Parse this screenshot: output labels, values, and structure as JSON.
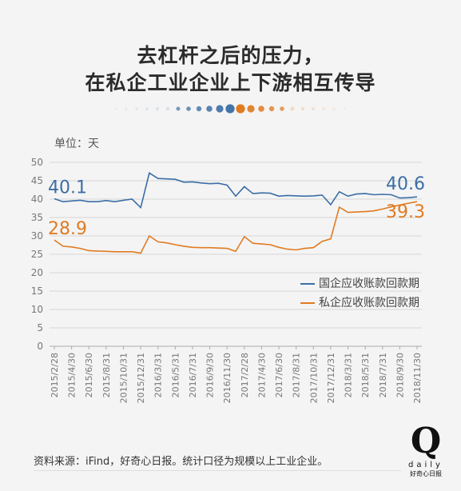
{
  "title_line1": "去杠杆之后的压力，",
  "title_line2": "在私企工业企业上下游相互传导",
  "unit_label": "单位：天",
  "source_text": "资料来源：iFind，好奇心日报。统计口径为规模以上工业企业。",
  "logo": {
    "mark": "Q",
    "word": "daily",
    "sub": "好奇心日报"
  },
  "colors": {
    "state": "#3b6ea5",
    "private": "#e07b22",
    "axis": "#999999",
    "grid": "#d6d6d6"
  },
  "chart_data": {
    "type": "line",
    "ylim": [
      0,
      50
    ],
    "yticks": [
      "0",
      "5",
      "10",
      "15",
      "20",
      "25",
      "30",
      "35",
      "40",
      "45",
      "50"
    ],
    "xtick_labels": [
      "2015/2/28",
      "2015/4/30",
      "2015/6/30",
      "2015/8/31",
      "2015/10/31",
      "2015/12/31",
      "2016/3/31",
      "2016/5/31",
      "2016/7/31",
      "2016/9/30",
      "2016/11/30",
      "2017/2/28",
      "2017/4/30",
      "2017/6/30",
      "2017/8/31",
      "2017/10/31",
      "2017/12/31",
      "2018/3/31",
      "2018/5/31",
      "2018/7/31",
      "2018/9/30",
      "2018/11/30"
    ],
    "legend": [
      "国企应收账款回款期",
      "私企应收账款回款期"
    ],
    "series": [
      {
        "name": "国企应收账款回款期",
        "start_label": "40.1",
        "end_label": "40.6",
        "values": [
          40.1,
          39.3,
          39.5,
          39.7,
          39.3,
          39.3,
          39.6,
          39.3,
          39.7,
          40.0,
          37.7,
          47.1,
          45.6,
          45.5,
          45.4,
          44.6,
          44.7,
          44.4,
          44.2,
          44.3,
          43.8,
          40.8,
          43.4,
          41.5,
          41.7,
          41.6,
          40.8,
          41.0,
          40.9,
          40.8,
          40.9,
          41.1,
          38.5,
          42.0,
          40.8,
          41.4,
          41.5,
          41.2,
          41.3,
          41.2,
          40.3,
          40.4,
          40.6
        ]
      },
      {
        "name": "私企应收账款回款期",
        "start_label": "28.9",
        "end_label": "39.3",
        "values": [
          28.9,
          27.2,
          27.0,
          26.6,
          26.0,
          25.9,
          25.8,
          25.7,
          25.7,
          25.7,
          25.3,
          30.0,
          28.4,
          28.1,
          27.6,
          27.2,
          26.9,
          26.8,
          26.8,
          26.7,
          26.6,
          25.8,
          29.8,
          28.0,
          27.8,
          27.6,
          26.9,
          26.4,
          26.2,
          26.6,
          26.8,
          28.5,
          29.2,
          37.8,
          36.4,
          36.5,
          36.6,
          36.8,
          37.3,
          37.9,
          38.4,
          38.9,
          39.3
        ]
      }
    ]
  }
}
